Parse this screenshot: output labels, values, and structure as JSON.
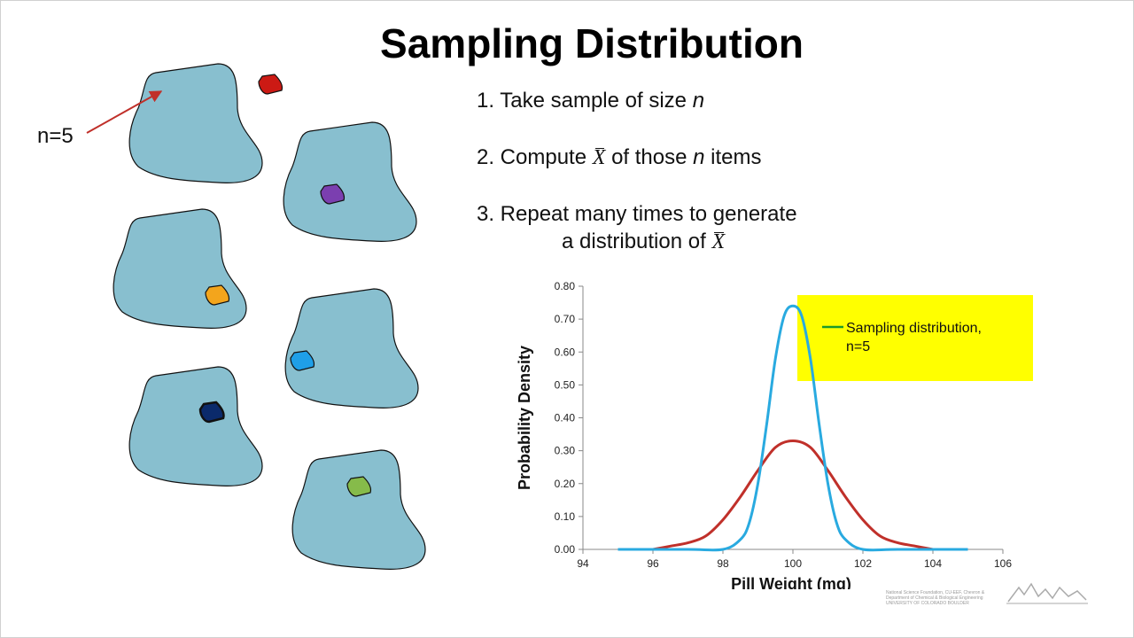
{
  "title": "Sampling Distribution",
  "callout_label": "n=5",
  "steps": {
    "s1_prefix": "1. Take sample of size ",
    "s1_var": "n",
    "s2_prefix": "2. Compute ",
    "s2_symbol": "X",
    "s2_middle": " of those ",
    "s2_var": "n",
    "s2_suffix": " items",
    "s3_line1": "3. Repeat many times to generate",
    "s3_line2_prefix": "a distribution of ",
    "s3_symbol": "X"
  },
  "legend_text_line1": "Sampling distribution,",
  "legend_text_line2": "n=5",
  "credits": "National Science Foundation, CU-EEF, Chevron & Department of Chemical & Biological Engineering UNIVERSITY OF COLORADO BOULDER",
  "colors": {
    "population_fill": "#88bfcf",
    "highlight": "#ffff00",
    "arrow": "#c0302a",
    "samples": [
      "#cc1a14",
      "#7b3fb0",
      "#f3a51c",
      "#1f9fe8",
      "#0b2a6b",
      "#86bb4a"
    ],
    "population_curve": "#c0302a",
    "sampling_curve": "#29aae0",
    "legend_line": "#1a9a2a"
  },
  "chart_data": {
    "type": "line",
    "xlabel": "Pill Weight (mg)",
    "ylabel": "Probability Density",
    "xlim": [
      94,
      106
    ],
    "ylim": [
      0,
      0.8
    ],
    "xticks": [
      "94",
      "96",
      "98",
      "100",
      "102",
      "104",
      "106"
    ],
    "yticks": [
      "0.00",
      "0.10",
      "0.20",
      "0.30",
      "0.40",
      "0.50",
      "0.60",
      "0.70",
      "0.80"
    ],
    "grid": false,
    "series": [
      {
        "color": "#c0302a",
        "x": [
          96.0,
          96.5,
          97.0,
          97.5,
          98.0,
          98.5,
          99.0,
          99.5,
          100.0,
          100.5,
          101.0,
          101.5,
          102.0,
          102.5,
          103.0,
          103.5,
          104.0
        ],
        "y": [
          0.0,
          0.01,
          0.02,
          0.04,
          0.09,
          0.16,
          0.24,
          0.31,
          0.33,
          0.31,
          0.24,
          0.16,
          0.09,
          0.04,
          0.02,
          0.01,
          0.0
        ]
      },
      {
        "name": "Sampling distribution, n=5",
        "color": "#29aae0",
        "x": [
          95.0,
          97.0,
          98.0,
          98.5,
          98.75,
          99.0,
          99.25,
          99.5,
          99.75,
          100.0,
          100.25,
          100.5,
          100.75,
          101.0,
          101.25,
          101.5,
          102.0,
          103.0,
          105.0
        ],
        "y": [
          0.0,
          0.0,
          0.0,
          0.03,
          0.08,
          0.2,
          0.38,
          0.58,
          0.71,
          0.74,
          0.71,
          0.58,
          0.38,
          0.2,
          0.08,
          0.03,
          0.0,
          0.0,
          0.0
        ]
      }
    ]
  }
}
